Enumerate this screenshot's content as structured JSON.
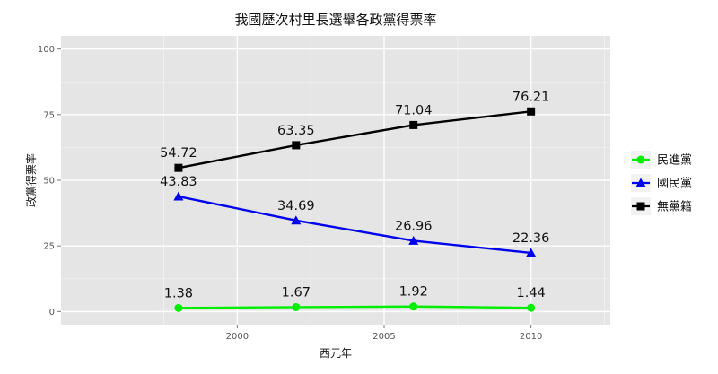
{
  "chart_data": {
    "type": "line",
    "title": "我國歷次村里長選舉各政黨得票率",
    "xlabel": "西元年",
    "ylabel": "政黨得票率",
    "x": [
      1998,
      2002,
      2006,
      2010
    ],
    "xlim": [
      1994,
      2012.7
    ],
    "ylim": [
      -5,
      105
    ],
    "x_ticks": [
      2000,
      2005,
      2010
    ],
    "y_ticks": [
      0,
      25,
      50,
      75,
      100
    ],
    "grid": true,
    "legend_position": "right",
    "series": [
      {
        "name": "民進黨",
        "values": [
          1.38,
          1.67,
          1.92,
          1.44
        ],
        "labels": [
          "1.38",
          "1.67",
          "1.92",
          "1.44"
        ],
        "color": "#00ee00",
        "marker": "circle"
      },
      {
        "name": "國民黨",
        "values": [
          43.83,
          34.69,
          26.96,
          22.36
        ],
        "labels": [
          "43.83",
          "34.69",
          "26.96",
          "22.36"
        ],
        "color": "#0000ee",
        "marker": "triangle"
      },
      {
        "name": "無黨籍",
        "values": [
          54.72,
          63.35,
          71.04,
          76.21
        ],
        "labels": [
          "54.72",
          "63.35",
          "71.04",
          "76.21"
        ],
        "color": "#000000",
        "marker": "square"
      }
    ]
  }
}
